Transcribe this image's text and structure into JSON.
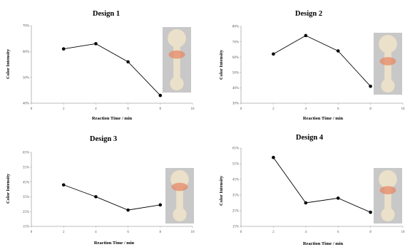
{
  "figure": {
    "colors": {
      "axis": "#a8a8a8",
      "line": "#000000",
      "marker": "#000000",
      "device_bg": "#c8c8c8",
      "device_channel": "#ebe0c9",
      "spot": "#e58a66"
    }
  },
  "chart_data": [
    {
      "type": "line",
      "title": "Design 1",
      "xlabel": "Reaction Time / min",
      "ylabel": "Color Intensity",
      "xlim": [
        0,
        10
      ],
      "ylim": [
        40,
        70
      ],
      "xticks": [
        "0",
        "2",
        "4",
        "6",
        "8",
        "10"
      ],
      "yticks": [
        "40%",
        "50%",
        "60%",
        "70%"
      ],
      "x": [
        2,
        4,
        6,
        8
      ],
      "y": [
        61,
        63,
        56,
        43
      ],
      "grid": false,
      "inset_image": "colorimetric-device-photo"
    },
    {
      "type": "line",
      "title": "Design 2",
      "xlabel": "Reaction Time / min",
      "ylabel": "Color Intensity",
      "xlim": [
        0,
        10
      ],
      "ylim": [
        30,
        80
      ],
      "xticks": [
        "0",
        "2",
        "4",
        "6",
        "8",
        "10"
      ],
      "yticks": [
        "30%",
        "40%",
        "50%",
        "60%",
        "70%",
        "80%"
      ],
      "x": [
        2,
        4,
        6,
        8
      ],
      "y": [
        62,
        74,
        64,
        41
      ],
      "grid": false,
      "inset_image": "colorimetric-device-photo"
    },
    {
      "type": "line",
      "title": "Design 3",
      "xlabel": "Reaction Time / min",
      "ylabel": "Color Intensity",
      "xlim": [
        0,
        10
      ],
      "ylim": [
        15,
        65
      ],
      "xticks": [
        "0",
        "2",
        "4",
        "6",
        "8",
        "10"
      ],
      "yticks": [
        "15%",
        "25%",
        "35%",
        "45%",
        "55%",
        "65%"
      ],
      "x": [
        2,
        4,
        6,
        8
      ],
      "y": [
        43,
        35,
        26,
        29.5
      ],
      "grid": false,
      "inset_image": "colorimetric-device-photo"
    },
    {
      "type": "line",
      "title": "Design 4",
      "xlabel": "Reaction Time / min",
      "ylabel": "Color Intensity",
      "xlim": [
        0,
        10
      ],
      "ylim": [
        15,
        65
      ],
      "xticks": [
        "0",
        "2",
        "4",
        "6",
        "8",
        "10"
      ],
      "yticks": [
        "15%",
        "25%",
        "35%",
        "45%",
        "55%",
        "65%"
      ],
      "x": [
        2,
        4,
        6,
        8
      ],
      "y": [
        59,
        30,
        33,
        24
      ],
      "grid": false,
      "inset_image": "colorimetric-device-photo"
    }
  ]
}
